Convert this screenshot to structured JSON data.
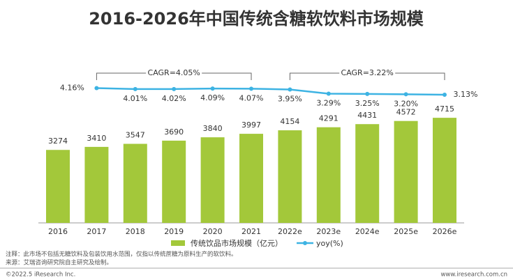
{
  "chart_data": {
    "type": "bar",
    "title": "2016-2026年中国传统含糖软饮料市场规模",
    "categories": [
      "2016",
      "2017",
      "2018",
      "2019",
      "2020",
      "2021",
      "2022e",
      "2023e",
      "2024e",
      "2025e",
      "2026e"
    ],
    "series": [
      {
        "name": "传统饮品市场规模（亿元）",
        "type": "bar",
        "color": "#a3c83a",
        "values": [
          3274,
          3410,
          3547,
          3690,
          3840,
          3997,
          4154,
          4291,
          4431,
          4572,
          4715
        ]
      },
      {
        "name": "yoy(%)",
        "type": "line",
        "axis": "y2",
        "color": "#3db3e3",
        "values": [
          null,
          4.16,
          4.01,
          4.02,
          4.09,
          4.07,
          3.95,
          3.29,
          3.25,
          3.2,
          3.13
        ],
        "value_labels": [
          null,
          "4.16%",
          "4.01%",
          "4.02%",
          "4.09%",
          "4.07%",
          "3.95%",
          "3.29%",
          "3.25%",
          "3.20%",
          "3.13%"
        ]
      }
    ],
    "ylim": [
      0,
      10000
    ],
    "y2lim": [
      -17,
      18
    ],
    "grid": false,
    "legend": "bottom",
    "annotations": [
      {
        "text": "CAGR=4.05%",
        "from": "2017",
        "to": "2021"
      },
      {
        "text": "CAGR=3.22%",
        "from": "2022e",
        "to": "2026e"
      }
    ],
    "notes": [
      "注释：此市场不包括无糖饮料及包装饮用水范围，仅指以传统蔗糖为原料生产的软饮料。",
      "来源：艾瑞咨询研究院自主研究及绘制。"
    ],
    "footer": {
      "left": "©2022.5 iResearch Inc.",
      "right": "www.iresearch.com.cn"
    }
  }
}
